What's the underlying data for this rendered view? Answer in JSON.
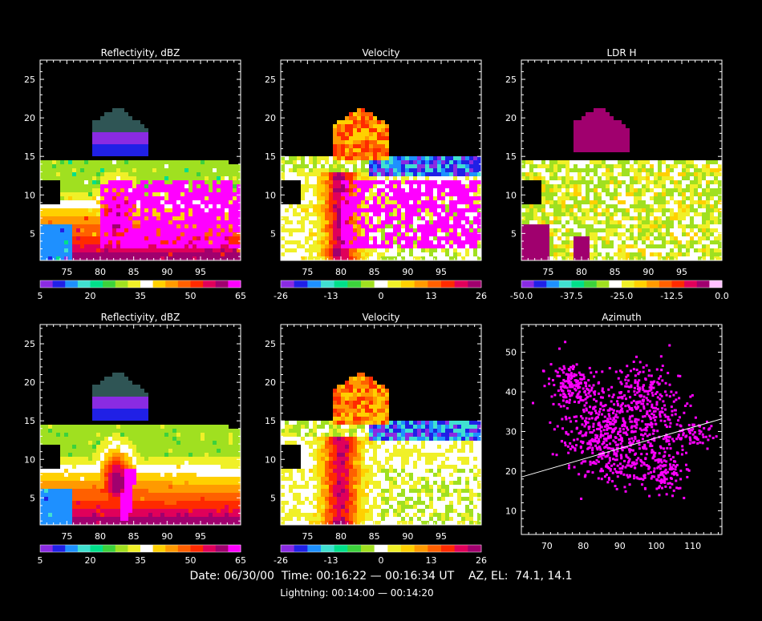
{
  "palette": [
    "#8a2be2",
    "#2020e6",
    "#1e90ff",
    "#40e0d0",
    "#00e08a",
    "#3cd23c",
    "#a0e020",
    "#f0f028",
    "#ffffff",
    "#ffd000",
    "#ff9a00",
    "#ff6000",
    "#ff2a00",
    "#e0005a",
    "#a0006e",
    "#ff00ff"
  ],
  "velocity_palette": [
    "#8a2be2",
    "#2020e6",
    "#1e90ff",
    "#40e0d0",
    "#00e08a",
    "#3cd23c",
    "#a0e020",
    "#ffffff",
    "#f0f028",
    "#ffd000",
    "#ff9a00",
    "#ff6000",
    "#ff2a00",
    "#e0005a",
    "#a0006e"
  ],
  "ldr_palette": [
    "#8a2be2",
    "#2020e6",
    "#1e90ff",
    "#40e0d0",
    "#00e08a",
    "#3cd23c",
    "#a0e020",
    "#ffffff",
    "#f0f028",
    "#ffd000",
    "#ff9a00",
    "#ff6000",
    "#ff2a00",
    "#e0005a",
    "#a0006e",
    "#ffc0ff"
  ],
  "footer": {
    "date_line": "Date: 06/30/00  Time: 00:16:22 — 00:16:34 UT    AZ, EL:  74.1, 14.1",
    "lightning_line": "Lightning: 00:14:00 — 00:14:20"
  },
  "chart_data": [
    {
      "id": "p1",
      "type": "heatmap",
      "title": "Reflectiyity, dBZ",
      "xlim": [
        71,
        101
      ],
      "ylim": [
        1.5,
        27.5
      ],
      "x_ticks": [
        75,
        80,
        85,
        90,
        95
      ],
      "y_ticks": [
        5,
        10,
        15,
        20,
        25
      ],
      "colorbar": {
        "palette": "palette",
        "ticks": [
          "5",
          "20",
          "35",
          "50",
          "65"
        ]
      }
    },
    {
      "id": "p2",
      "type": "heatmap",
      "title": "Velocity",
      "xlim": [
        71,
        101
      ],
      "ylim": [
        1.5,
        27.5
      ],
      "x_ticks": [
        75,
        80,
        85,
        90,
        95
      ],
      "y_ticks": [
        5,
        10,
        15,
        20,
        25
      ],
      "colorbar": {
        "palette": "velocity_palette",
        "ticks": [
          "-26",
          "-13",
          "0",
          "13",
          "26"
        ]
      }
    },
    {
      "id": "p3",
      "type": "heatmap",
      "title": "LDR H",
      "xlim": [
        71,
        101
      ],
      "ylim": [
        1.5,
        27.5
      ],
      "x_ticks": [
        75,
        80,
        85,
        90,
        95
      ],
      "y_ticks": [
        5,
        10,
        15,
        20,
        25
      ],
      "colorbar": {
        "palette": "ldr_palette",
        "ticks": [
          "-50.0",
          "-37.5",
          "-25.0",
          "-12.5",
          "0.0"
        ]
      }
    },
    {
      "id": "p4",
      "type": "heatmap",
      "title": "Reflectiyity, dBZ",
      "xlim": [
        71,
        101
      ],
      "ylim": [
        1.5,
        27.5
      ],
      "x_ticks": [
        75,
        80,
        85,
        90,
        95
      ],
      "y_ticks": [
        5,
        10,
        15,
        20,
        25
      ],
      "colorbar": {
        "palette": "palette",
        "ticks": [
          "5",
          "20",
          "35",
          "50",
          "65"
        ]
      }
    },
    {
      "id": "p5",
      "type": "heatmap",
      "title": "Velocity",
      "xlim": [
        71,
        101
      ],
      "ylim": [
        1.5,
        27.5
      ],
      "x_ticks": [
        75,
        80,
        85,
        90,
        95
      ],
      "y_ticks": [
        5,
        10,
        15,
        20,
        25
      ],
      "colorbar": {
        "palette": "velocity_palette",
        "ticks": [
          "-26",
          "-13",
          "0",
          "13",
          "26"
        ]
      }
    },
    {
      "id": "p6",
      "type": "scatter",
      "title": "Azimuth",
      "xlim": [
        63,
        118
      ],
      "ylim": [
        4,
        57
      ],
      "x_ticks": [
        70,
        80,
        90,
        100,
        110
      ],
      "y_ticks": [
        10,
        20,
        30,
        40,
        50
      ],
      "point_color": "#ff00ff",
      "line_color": "#ffffff",
      "line": {
        "x": [
          63,
          118
        ],
        "y": [
          18.5,
          33.2
        ]
      },
      "clusters": [
        {
          "x": 85,
          "y": 30,
          "sx": 5,
          "sy": 5,
          "n": 330
        },
        {
          "x": 77,
          "y": 42,
          "sx": 3.5,
          "sy": 2.8,
          "n": 170
        },
        {
          "x": 98,
          "y": 35,
          "sx": 5,
          "sy": 6,
          "n": 230
        },
        {
          "x": 103,
          "y": 20,
          "sx": 3,
          "sy": 3,
          "n": 110
        },
        {
          "x": 92,
          "y": 22,
          "sx": 5,
          "sy": 3,
          "n": 140
        },
        {
          "x": 110,
          "y": 29,
          "sx": 4,
          "sy": 2,
          "n": 70
        },
        {
          "x": 96,
          "y": 42,
          "sx": 3,
          "sy": 2,
          "n": 60
        }
      ]
    }
  ]
}
